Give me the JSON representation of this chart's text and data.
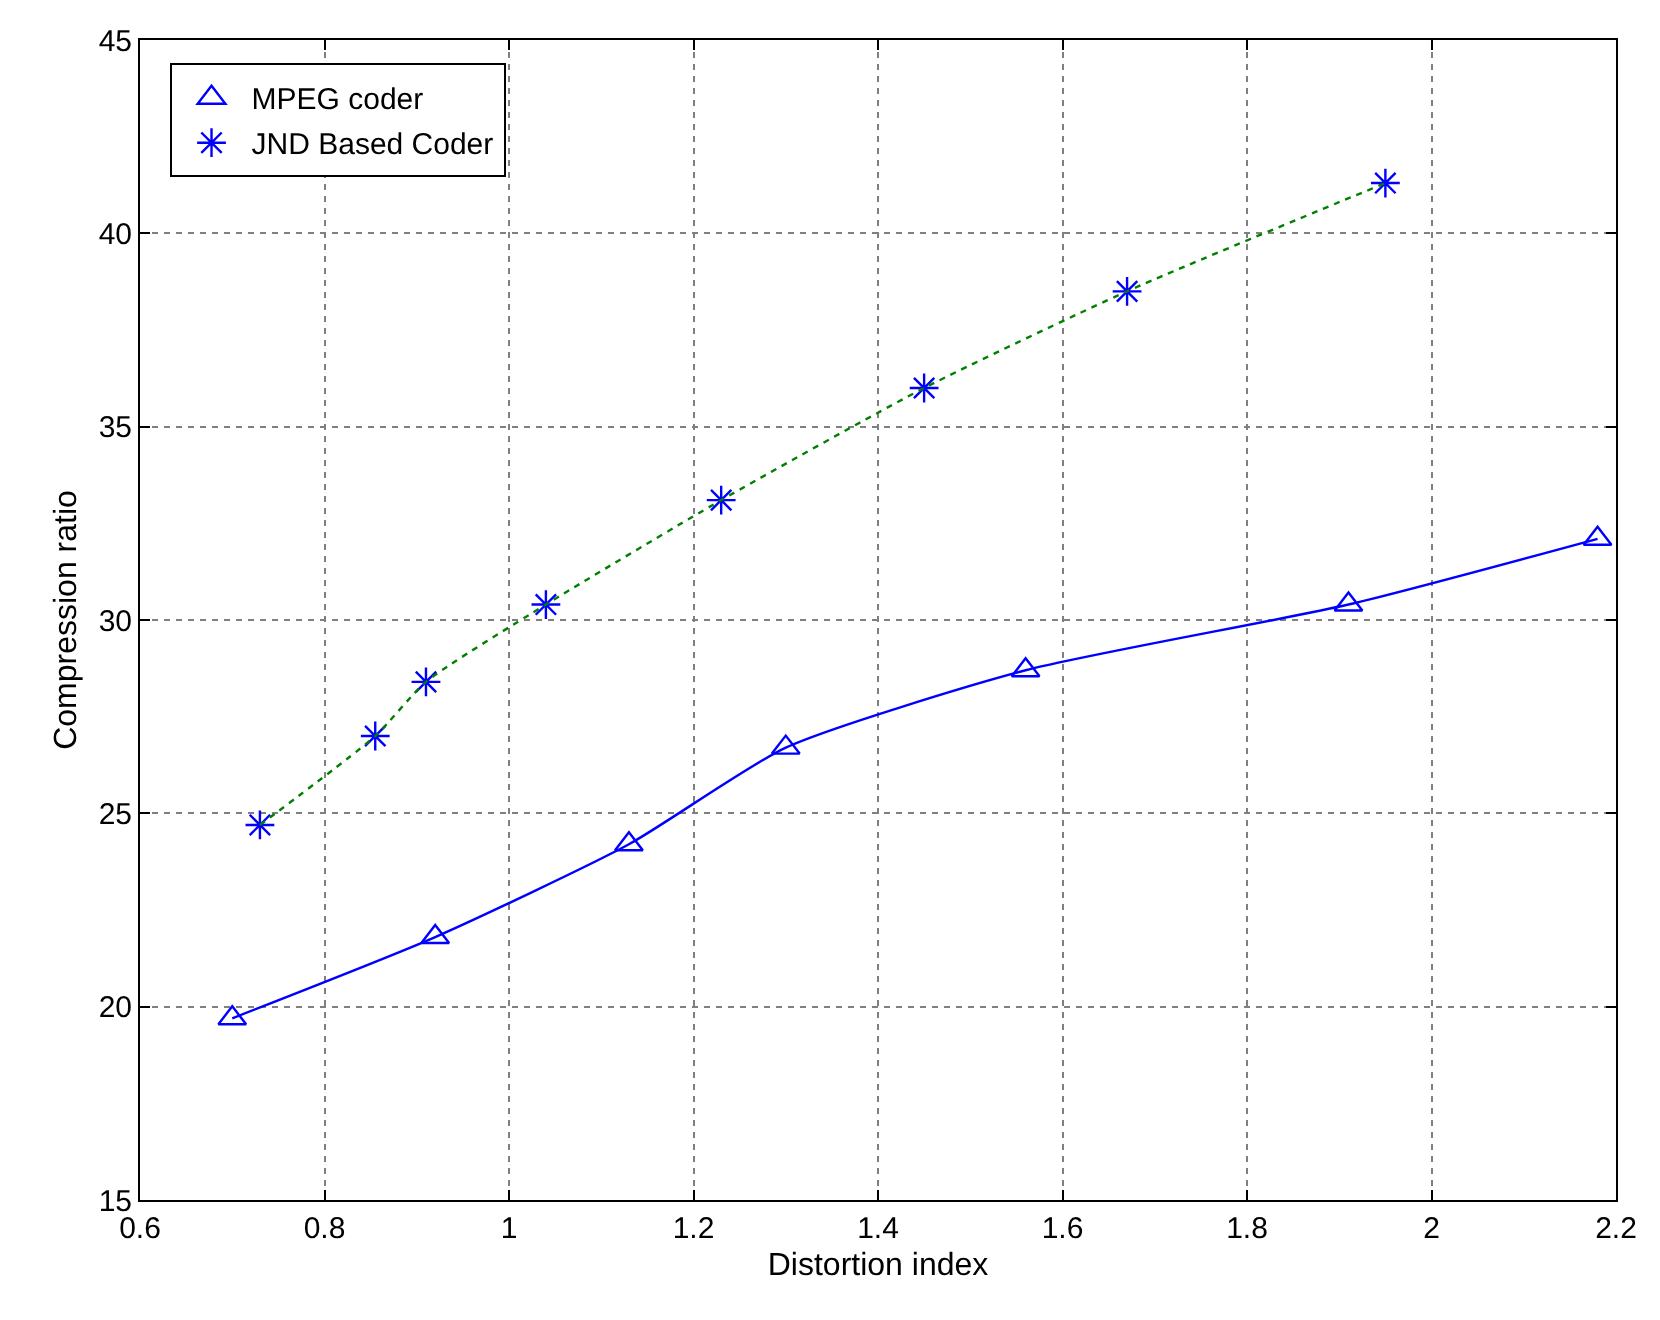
{
  "chart_data": {
    "type": "scatter",
    "xlabel": "Distortion index",
    "ylabel": "Compression ratio",
    "xlim": [
      0.6,
      2.2
    ],
    "xticks": [
      0.6,
      0.8,
      1,
      1.2,
      1.4,
      1.6,
      1.8,
      2,
      2.2
    ],
    "ylim": [
      15,
      45
    ],
    "yticks": [
      15,
      20,
      25,
      30,
      35,
      40,
      45
    ],
    "grid": true,
    "legend": "top left",
    "series": [
      {
        "name": "MPEG coder",
        "marker": "triangle",
        "color": "#0000ff",
        "x": [
          0.7,
          0.92,
          1.13,
          1.3,
          1.56,
          1.91,
          2.18
        ],
        "values": [
          19.7,
          21.8,
          24.2,
          26.7,
          28.7,
          30.4,
          32.1
        ]
      },
      {
        "name": "JND Based Coder",
        "marker": "cross",
        "color": "#0000ff",
        "x": [
          0.73,
          0.855,
          0.91,
          1.04,
          1.23,
          1.45,
          1.67,
          1.95
        ],
        "values": [
          24.7,
          27.0,
          28.4,
          30.4,
          33.1,
          36.0,
          38.5,
          41.3
        ]
      },
      {
        "type": "line",
        "marker": "none",
        "line_style": "solid",
        "color": "#0000ff",
        "x": [
          0.7,
          0.92,
          1.13,
          1.3,
          1.56,
          1.91,
          2.18
        ],
        "values": [
          19.7,
          21.8,
          24.2,
          26.7,
          28.7,
          30.4,
          32.1
        ]
      },
      {
        "type": "line",
        "marker": "none",
        "line_style": "dotted",
        "color": "#008000",
        "x": [
          0.73,
          0.855,
          0.91,
          1.04,
          1.23,
          1.45,
          1.67,
          1.95
        ],
        "values": [
          24.7,
          27.0,
          28.4,
          30.4,
          33.1,
          36.0,
          38.5,
          41.3
        ]
      }
    ]
  }
}
